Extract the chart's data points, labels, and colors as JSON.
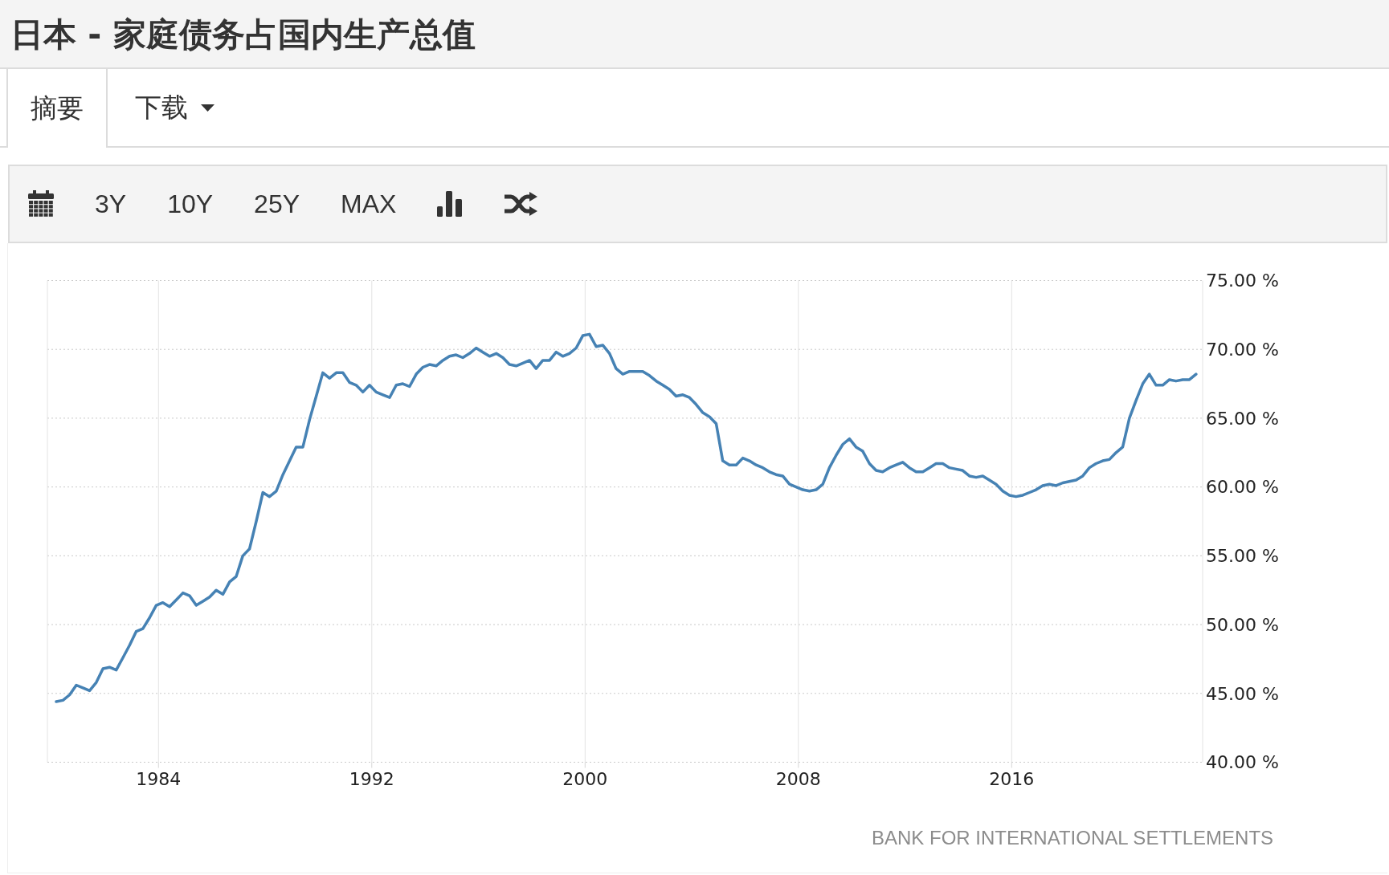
{
  "chart_data": {
    "type": "line",
    "title": "日本 - 家庭债务占国内生产总值",
    "annotations": [
      "摘要",
      "下载",
      "3Y",
      "10Y",
      "25Y",
      "MAX",
      "BANK FOR INTERNATIONAL SETTLEMENTS"
    ],
    "x": [
      "1980-03",
      "1980-06",
      "1980-09",
      "1980-12",
      "1981-03",
      "1981-06",
      "1981-09",
      "1981-12",
      "1982-03",
      "1982-06",
      "1982-09",
      "1982-12",
      "1983-03",
      "1983-06",
      "1983-09",
      "1983-12",
      "1984-03",
      "1984-06",
      "1984-09",
      "1984-12",
      "1985-03",
      "1985-06",
      "1985-09",
      "1985-12",
      "1986-03",
      "1986-06",
      "1986-09",
      "1986-12",
      "1987-03",
      "1987-06",
      "1987-09",
      "1987-12",
      "1988-03",
      "1988-06",
      "1988-09",
      "1988-12",
      "1989-03",
      "1989-06",
      "1989-09",
      "1989-12",
      "1990-03",
      "1990-06",
      "1990-09",
      "1990-12",
      "1991-03",
      "1991-06",
      "1991-09",
      "1991-12",
      "1992-03",
      "1992-06",
      "1992-09",
      "1992-12",
      "1993-03",
      "1993-06",
      "1993-09",
      "1993-12",
      "1994-03",
      "1994-06",
      "1994-09",
      "1994-12",
      "1995-03",
      "1995-06",
      "1995-09",
      "1995-12",
      "1996-03",
      "1996-06",
      "1996-09",
      "1996-12",
      "1997-03",
      "1997-06",
      "1997-09",
      "1997-12",
      "1998-03",
      "1998-06",
      "1998-09",
      "1998-12",
      "1999-03",
      "1999-06",
      "1999-09",
      "1999-12",
      "2000-03",
      "2000-06",
      "2000-09",
      "2000-12",
      "2001-03",
      "2001-06",
      "2001-09",
      "2001-12",
      "2002-03",
      "2002-06",
      "2002-09",
      "2002-12",
      "2003-03",
      "2003-06",
      "2003-09",
      "2003-12",
      "2004-03",
      "2004-06",
      "2004-09",
      "2004-12",
      "2005-03",
      "2005-06",
      "2005-09",
      "2005-12",
      "2006-03",
      "2006-06",
      "2006-09",
      "2006-12",
      "2007-03",
      "2007-06",
      "2007-09",
      "2007-12",
      "2008-03",
      "2008-06",
      "2008-09",
      "2008-12",
      "2009-03",
      "2009-06",
      "2009-09",
      "2009-12",
      "2010-03",
      "2010-06",
      "2010-09",
      "2010-12",
      "2011-03",
      "2011-06",
      "2011-09",
      "2011-12",
      "2012-03",
      "2012-06",
      "2012-09",
      "2012-12",
      "2013-03",
      "2013-06",
      "2013-09",
      "2013-12",
      "2014-03",
      "2014-06",
      "2014-09",
      "2014-12",
      "2015-03",
      "2015-06",
      "2015-09",
      "2015-12",
      "2016-03",
      "2016-06",
      "2016-09",
      "2016-12",
      "2017-03",
      "2017-06",
      "2017-09",
      "2017-12",
      "2018-03",
      "2018-06",
      "2018-09",
      "2018-12",
      "2019-03",
      "2019-06",
      "2019-09",
      "2019-12",
      "2020-03",
      "2020-06",
      "2020-09",
      "2020-12",
      "2021-03",
      "2021-06",
      "2021-09",
      "2021-12",
      "2022-03",
      "2022-06",
      "2022-09",
      "2022-12"
    ],
    "values": [
      44.4,
      44.5,
      44.9,
      45.6,
      45.4,
      45.2,
      45.8,
      46.8,
      46.9,
      46.7,
      47.6,
      48.5,
      49.5,
      49.7,
      50.5,
      51.4,
      51.6,
      51.3,
      51.8,
      52.3,
      52.1,
      51.4,
      51.7,
      52.0,
      52.5,
      52.2,
      53.1,
      53.5,
      55.0,
      55.5,
      57.5,
      59.6,
      59.3,
      59.7,
      60.9,
      61.9,
      62.9,
      62.9,
      64.9,
      66.6,
      68.3,
      67.9,
      68.3,
      68.3,
      67.6,
      67.4,
      66.9,
      67.4,
      66.9,
      66.7,
      66.5,
      67.4,
      67.5,
      67.3,
      68.2,
      68.7,
      68.9,
      68.8,
      69.2,
      69.5,
      69.6,
      69.4,
      69.7,
      70.1,
      69.8,
      69.5,
      69.7,
      69.4,
      68.9,
      68.8,
      69.0,
      69.2,
      68.6,
      69.2,
      69.2,
      69.8,
      69.5,
      69.7,
      70.1,
      71.0,
      71.1,
      70.2,
      70.3,
      69.7,
      68.6,
      68.2,
      68.4,
      68.4,
      68.4,
      68.1,
      67.7,
      67.4,
      67.1,
      66.6,
      66.7,
      66.5,
      66.0,
      65.4,
      65.1,
      64.6,
      61.9,
      61.6,
      61.6,
      62.1,
      61.9,
      61.6,
      61.4,
      61.1,
      60.9,
      60.8,
      60.2,
      60.0,
      59.8,
      59.7,
      59.8,
      60.2,
      61.4,
      62.3,
      63.1,
      63.5,
      62.9,
      62.6,
      61.7,
      61.2,
      61.1,
      61.4,
      61.6,
      61.8,
      61.4,
      61.1,
      61.1,
      61.4,
      61.7,
      61.7,
      61.4,
      61.3,
      61.2,
      60.8,
      60.7,
      60.8,
      60.5,
      60.2,
      59.7,
      59.4,
      59.3,
      59.4,
      59.6,
      59.8,
      60.1,
      60.2,
      60.1,
      60.3,
      60.4,
      60.5,
      60.8,
      61.4,
      61.7,
      61.9,
      62.0,
      62.5,
      62.9,
      65.0,
      66.3,
      67.5,
      68.2,
      67.4,
      67.4,
      67.8,
      67.7,
      67.8,
      67.8,
      68.2
    ],
    "color": "#4682b4",
    "xlim": [
      "1979-11",
      "2023-03"
    ],
    "xticks": [
      "1984",
      "1992",
      "2000",
      "2008",
      "2016"
    ],
    "ylim": [
      40,
      75
    ],
    "yticks": [
      {
        "value": 40,
        "label": "40.00 %"
      },
      {
        "value": 45,
        "label": "45.00 %"
      },
      {
        "value": 50,
        "label": "50.00 %"
      },
      {
        "value": 55,
        "label": "55.00 %"
      },
      {
        "value": 60,
        "label": "60.00 %"
      },
      {
        "value": 65,
        "label": "65.00 %"
      },
      {
        "value": 70,
        "label": "70.00 %"
      },
      {
        "value": 75,
        "label": "75.00 %"
      }
    ],
    "grid": true,
    "marker": "none",
    "line_style": "solid"
  }
}
